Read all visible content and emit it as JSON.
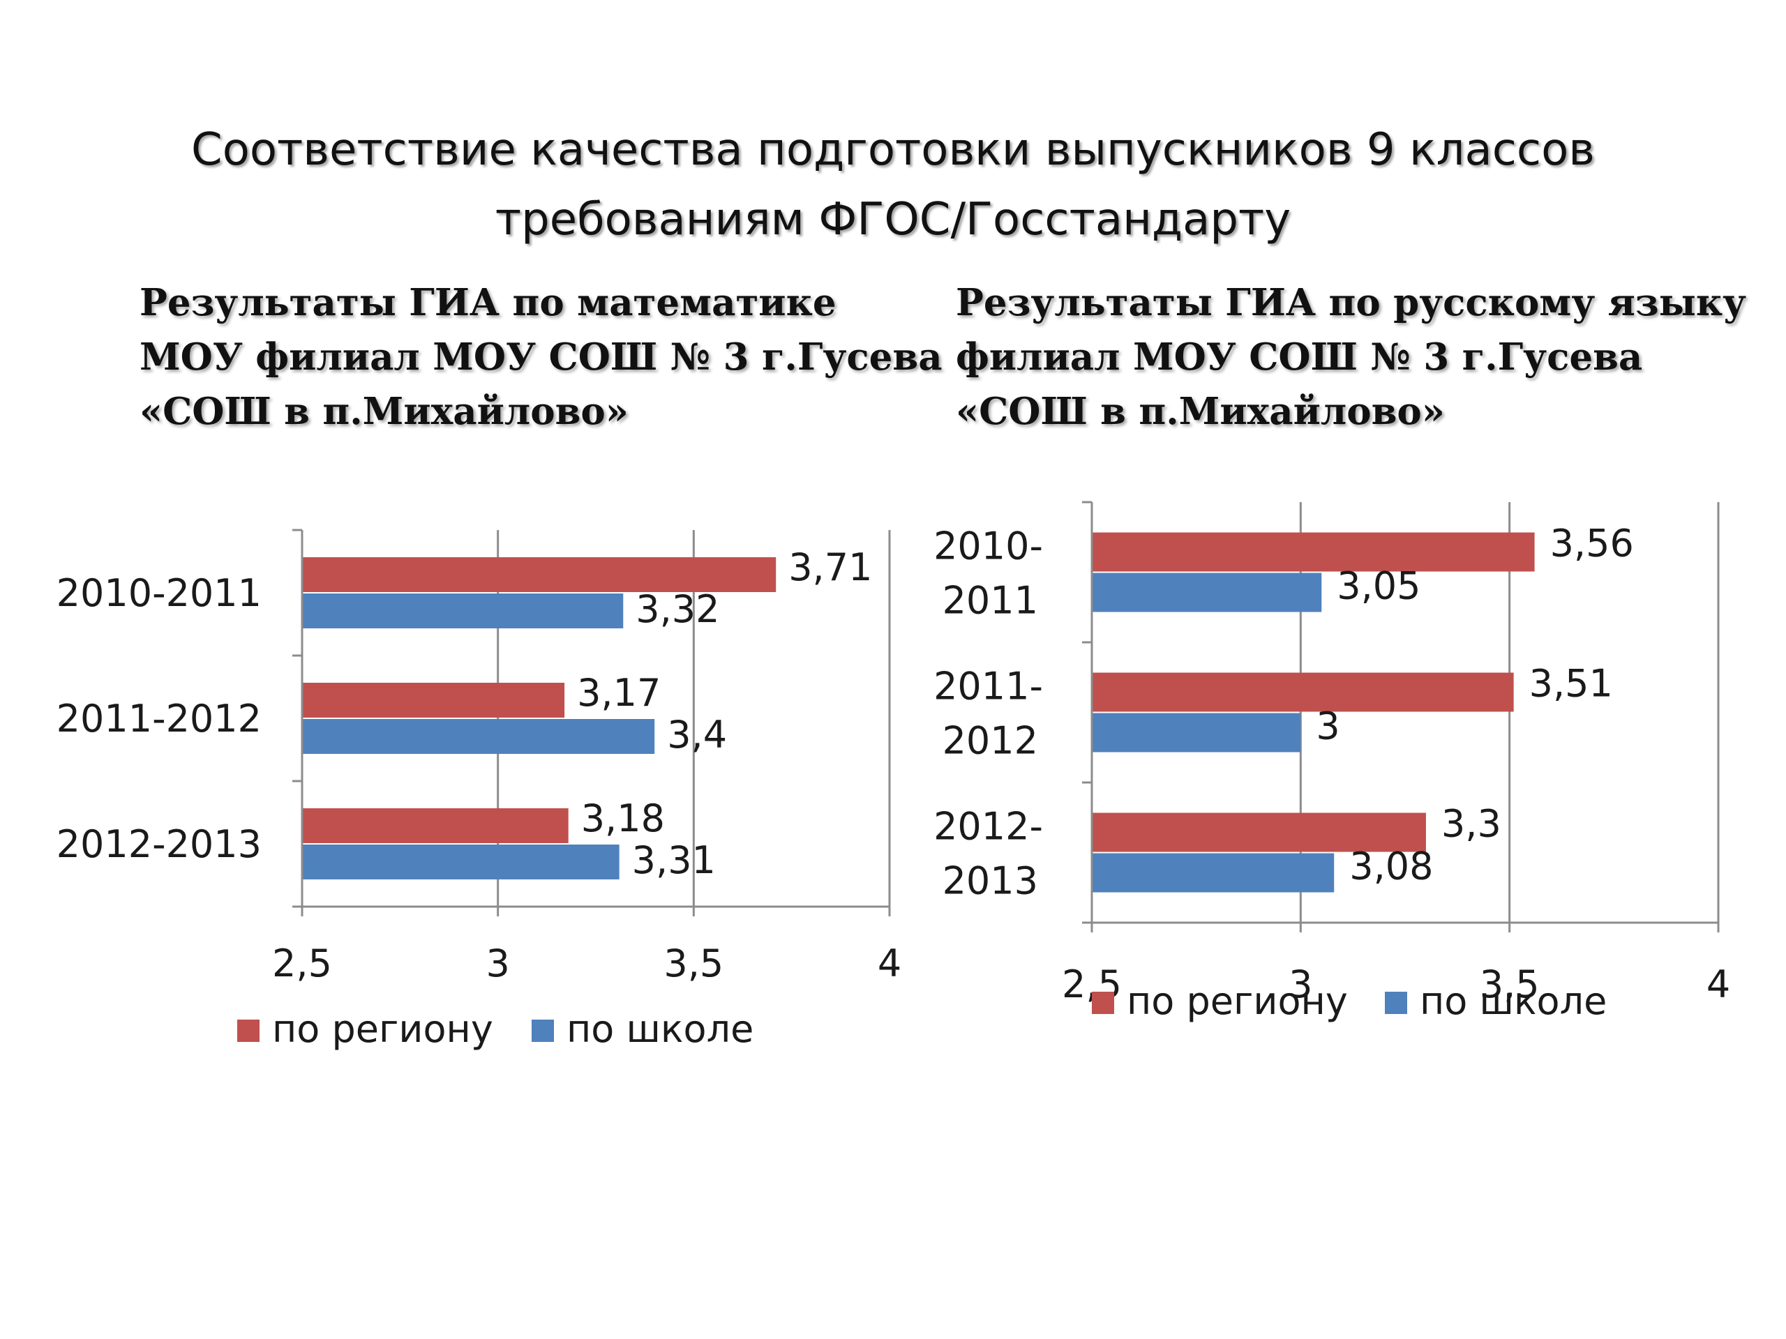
{
  "page": {
    "title_lines": [
      "Соответствие качества подготовки выпускников 9 классов",
      "требованиям ФГОС/Госстандарту"
    ]
  },
  "colors": {
    "region": "#C0504D",
    "school": "#4F81BD",
    "axis": "#8c8c8c"
  },
  "chart_data": [
    {
      "type": "bar",
      "orientation": "horizontal",
      "title_lines": [
        "Результаты  ГИА по математике",
        "МОУ филиал МОУ СОШ № 3 г.Гусева",
        "«СОШ в п.Михайлово»"
      ],
      "categories": [
        [
          "2010-2011"
        ],
        [
          "2011-2012"
        ],
        [
          "2012-2013"
        ]
      ],
      "series": [
        {
          "name": "по региону",
          "values": [
            3.71,
            3.17,
            3.18
          ],
          "labels": [
            "3,71",
            "3,17",
            "3,18"
          ]
        },
        {
          "name": "по  школе",
          "values": [
            3.32,
            3.4,
            3.31
          ],
          "labels": [
            "3,32",
            "3,4",
            "3,31"
          ]
        }
      ],
      "xlim": [
        2.5,
        4
      ],
      "xticks": [
        2.5,
        3,
        3.5,
        4
      ],
      "xtick_labels": [
        "2,5",
        "3",
        "3,5",
        "4"
      ],
      "grid": true,
      "legend": "bottom"
    },
    {
      "type": "bar",
      "orientation": "horizontal",
      "title_lines": [
        "Результаты ГИА по русскому языку",
        "филиал   МОУ СОШ № 3 г.Гусева",
        "«СОШ в п.Михайлово»"
      ],
      "categories": [
        [
          "2010-",
          "2011"
        ],
        [
          "2011-",
          "2012"
        ],
        [
          "2012-",
          "2013"
        ]
      ],
      "series": [
        {
          "name": "по региону",
          "values": [
            3.56,
            3.51,
            3.3
          ],
          "labels": [
            "3,56",
            "3,51",
            "3,3"
          ]
        },
        {
          "name": "по  школе",
          "values": [
            3.05,
            3.0,
            3.08
          ],
          "labels": [
            "3,05",
            "3",
            "3,08"
          ]
        }
      ],
      "xlim": [
        2.5,
        4
      ],
      "xticks": [
        2.5,
        3,
        3.5,
        4
      ],
      "xtick_labels": [
        "2,5",
        "3",
        "3,5",
        "4"
      ],
      "grid": true,
      "legend": "bottom"
    }
  ]
}
